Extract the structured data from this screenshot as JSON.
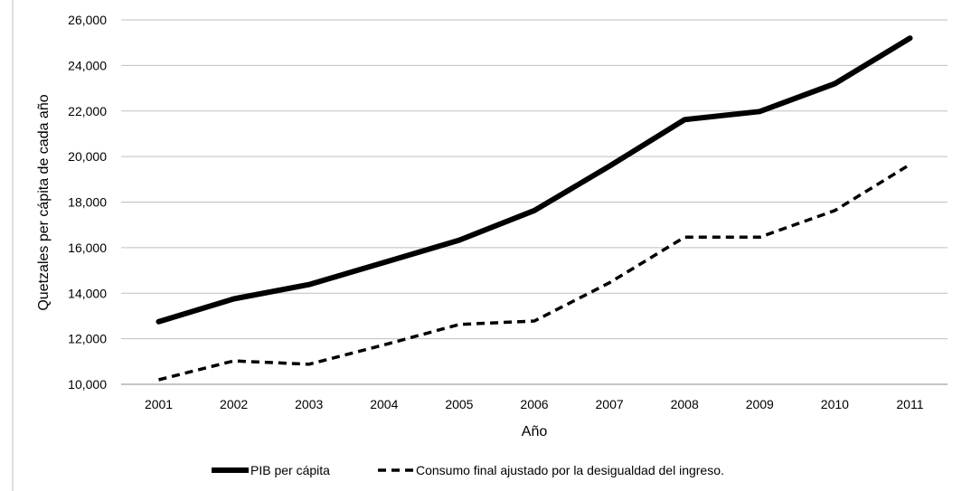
{
  "chart_data": {
    "type": "line",
    "title": "",
    "xlabel": "Año",
    "ylabel": "Quetzales per cápita de cada año",
    "categories": [
      "2001",
      "2002",
      "2003",
      "2004",
      "2005",
      "2006",
      "2007",
      "2008",
      "2009",
      "2010",
      "2011"
    ],
    "ylim": [
      10000,
      26000
    ],
    "yticks": [
      10000,
      12000,
      14000,
      16000,
      18000,
      20000,
      22000,
      24000,
      26000
    ],
    "ytick_labels": [
      "10,000",
      "12,000",
      "14,000",
      "16,000",
      "18,000",
      "20,000",
      "22,000",
      "24,000",
      "26,000"
    ],
    "grid": true,
    "legend_position": "bottom",
    "series": [
      {
        "name": "PIB per cápita",
        "style": "solid",
        "color": "#000000",
        "values": [
          12750,
          13750,
          14380,
          15350,
          16330,
          17630,
          19580,
          21620,
          21980,
          23200,
          25200
        ]
      },
      {
        "name": "Consumo final ajustado por la desigualdad del ingreso.",
        "style": "dashed",
        "color": "#000000",
        "values": [
          10200,
          11030,
          10880,
          11730,
          12630,
          12780,
          14460,
          16460,
          16460,
          17630,
          19650
        ]
      }
    ]
  }
}
